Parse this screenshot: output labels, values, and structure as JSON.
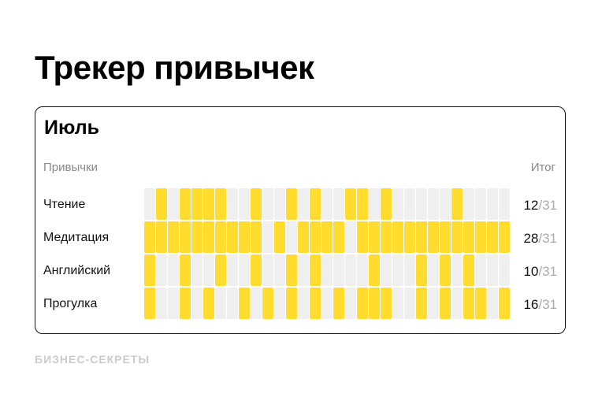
{
  "title": "Трекер привычек",
  "month": "Июль",
  "headers": {
    "habits": "Привычки",
    "total": "Итог"
  },
  "days_in_month": 31,
  "colors": {
    "done": "#ffdc2e",
    "empty": "#efefef"
  },
  "habits": [
    {
      "name": "Чтение",
      "done_days": [
        2,
        4,
        5,
        6,
        7,
        10,
        13,
        15,
        18,
        19,
        21,
        27
      ],
      "count": "12",
      "of": "/31"
    },
    {
      "name": "Медитация",
      "done_days": [
        1,
        2,
        3,
        4,
        5,
        6,
        7,
        8,
        9,
        10,
        12,
        14,
        15,
        16,
        17,
        19,
        20,
        21,
        22,
        23,
        24,
        25,
        26,
        27,
        28,
        29,
        30,
        31
      ],
      "count": "28",
      "of": "/31"
    },
    {
      "name": "Английский",
      "done_days": [
        1,
        4,
        7,
        10,
        13,
        15,
        20,
        24,
        26,
        28
      ],
      "count": "10",
      "of": "/31"
    },
    {
      "name": "Прогулка",
      "done_days": [
        1,
        4,
        6,
        9,
        11,
        13,
        15,
        17,
        19,
        20,
        21,
        24,
        26,
        28,
        29,
        31
      ],
      "count": "16",
      "of": "/31"
    }
  ],
  "brand": "БИЗНЕС-СЕКРЕТЫ"
}
